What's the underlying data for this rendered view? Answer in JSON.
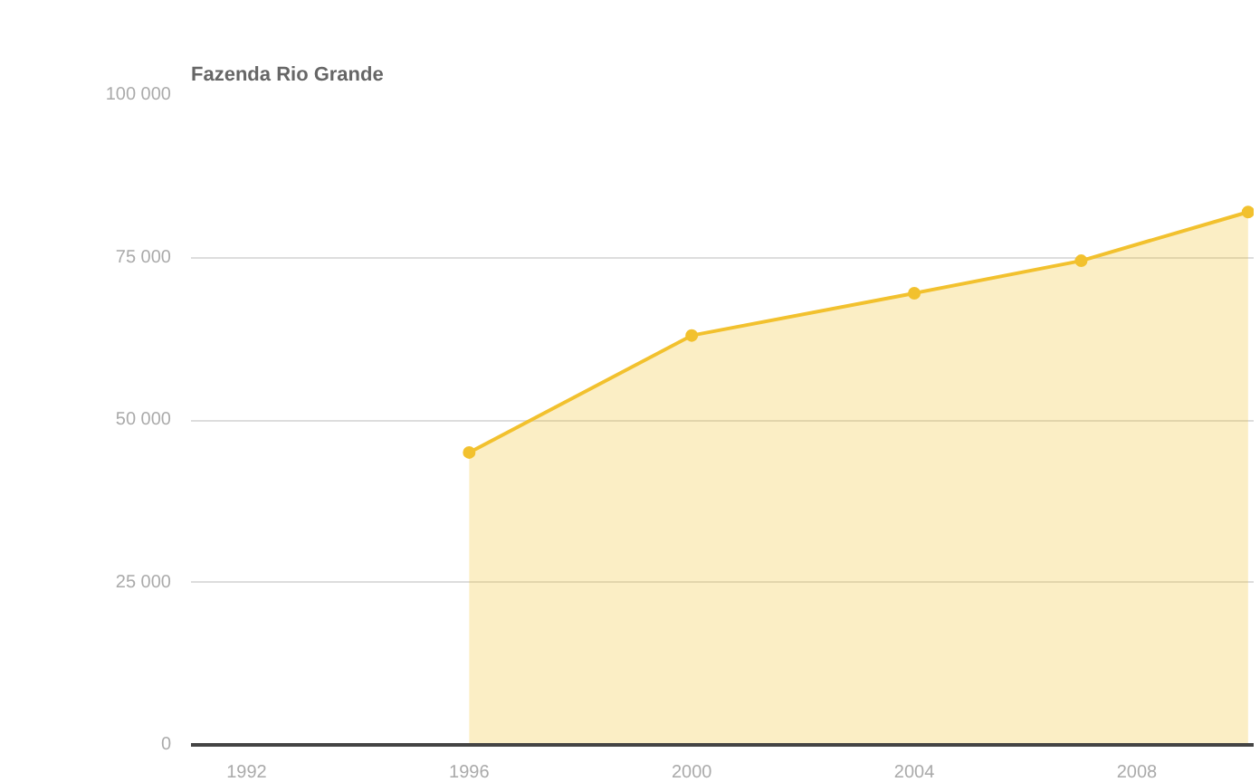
{
  "chart_data": {
    "type": "area",
    "title": "Fazenda Rio Grande",
    "x": [
      1996,
      2000,
      2004,
      2007,
      2010
    ],
    "series": [
      {
        "color": "#f2c12e",
        "values": [
          45000,
          63000,
          69500,
          74500,
          82000
        ]
      }
    ],
    "xlim": [
      1991,
      2010.1
    ],
    "xticks": [
      1992,
      1996,
      2000,
      2004,
      2008
    ],
    "ylim": [
      0,
      100000
    ],
    "yticks": [
      {
        "value": 0,
        "label": "0"
      },
      {
        "value": 25000,
        "label": "25 000"
      },
      {
        "value": 50000,
        "label": "50 000"
      },
      {
        "value": 75000,
        "label": "75 000"
      },
      {
        "value": 100000,
        "label": "100 000"
      }
    ],
    "grid": "y",
    "marker": "circle"
  }
}
